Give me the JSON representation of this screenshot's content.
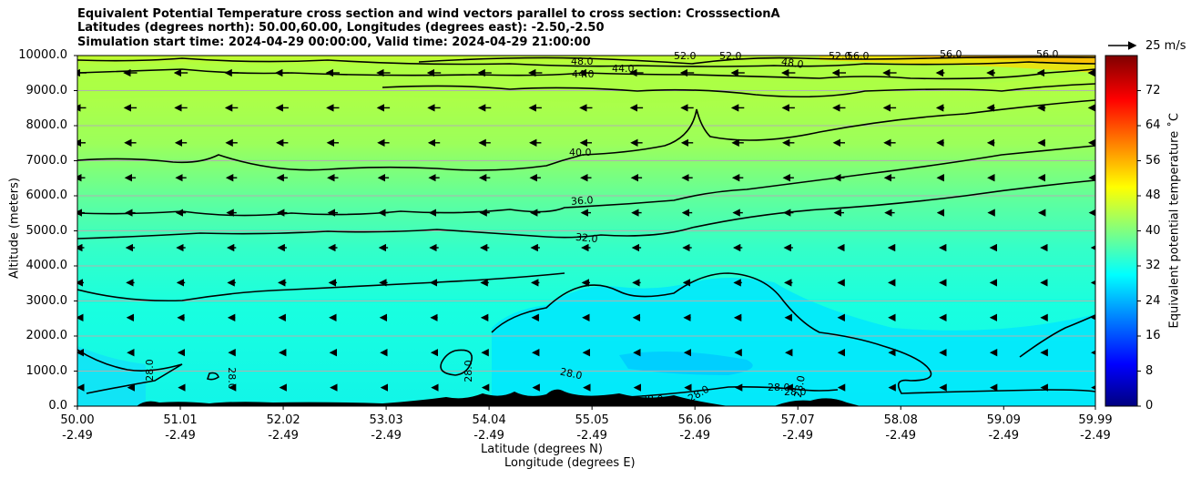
{
  "chart_data": {
    "type": "contour-filled cross section with wind vectors",
    "title_lines": [
      "Equivalent Potential Temperature cross section and wind vectors parallel to cross section: CrosssectionA",
      "Latitudes (degrees north): 50.00,60.00, Longitudes (degrees east): -2.50,-2.50",
      "Simulation start time: 2024-04-29 00:00:00, Valid time: 2024-04-29 21:00:00"
    ],
    "ylabel": "Altitude (meters)",
    "xlabel_line1": "Latitude (degrees N)",
    "xlabel_line2": "Longitude (degrees E)",
    "ylim": [
      0,
      10000
    ],
    "yticks": [
      "0.0",
      "1000.0",
      "2000.0",
      "3000.0",
      "4000.0",
      "5000.0",
      "6000.0",
      "7000.0",
      "8000.0",
      "9000.0",
      "10000.0"
    ],
    "xlim": [
      50.0,
      59.99
    ],
    "xticks": [
      {
        "lat": "50.00",
        "lon": "-2.49"
      },
      {
        "lat": "51.01",
        "lon": "-2.49"
      },
      {
        "lat": "52.02",
        "lon": "-2.49"
      },
      {
        "lat": "53.03",
        "lon": "-2.49"
      },
      {
        "lat": "54.04",
        "lon": "-2.49"
      },
      {
        "lat": "55.05",
        "lon": "-2.49"
      },
      {
        "lat": "56.06",
        "lon": "-2.49"
      },
      {
        "lat": "57.07",
        "lon": "-2.49"
      },
      {
        "lat": "58.08",
        "lon": "-2.49"
      },
      {
        "lat": "59.09",
        "lon": "-2.49"
      },
      {
        "lat": "59.99",
        "lon": "-2.49"
      }
    ],
    "grid": "horizontal",
    "colorbar": {
      "label": "Equivalent potential temperature ˚C",
      "range": [
        0,
        80
      ],
      "ticks": [
        "0",
        "8",
        "16",
        "24",
        "32",
        "40",
        "48",
        "56",
        "64",
        "72"
      ],
      "colormap": "jet"
    },
    "contour_lines": [
      {
        "level": 28,
        "label": "28.0"
      },
      {
        "level": 32,
        "label": "32.0"
      },
      {
        "level": 36,
        "label": "36.0"
      },
      {
        "level": 40,
        "label": "40.0"
      },
      {
        "level": 44,
        "label": "44.0"
      },
      {
        "level": 48,
        "label": "48.0"
      },
      {
        "level": 52,
        "label": "52.0"
      },
      {
        "level": 56,
        "label": "56.0"
      }
    ],
    "contour_label_texts": {
      "c28a": "28.0",
      "c28b": "28.0",
      "c28c": "28.0",
      "c28d": "28.0",
      "c28e": "28.0",
      "c28f": "28.0",
      "c28g": "28.0",
      "c28h": "28.0",
      "c28i": "28.0",
      "c32": "32.0",
      "c36": "36.0",
      "c40": "40.0",
      "c44a": "44.0",
      "c44b": "44.0",
      "c48a": "48.0",
      "c48b": "48.0",
      "c52a": "52.0",
      "c52b": "52.0",
      "c52c": "52.0",
      "c56a": "56.0",
      "c56b": "56.0",
      "c56c": "56.0"
    },
    "wind_reference": {
      "label": "25 m/s",
      "speed": 25
    },
    "wind_direction": "mostly parallel toward decreasing latitude (leftward)",
    "terrain_color": "#000000"
  }
}
